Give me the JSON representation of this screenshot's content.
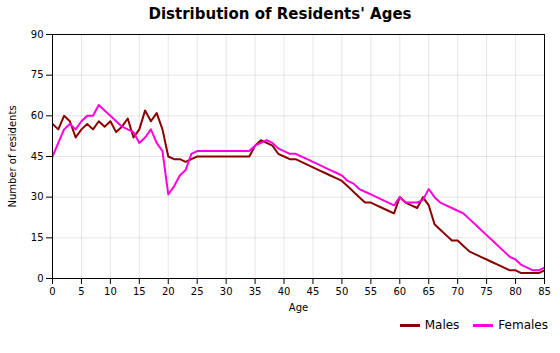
{
  "chart_data": {
    "type": "line",
    "title": "Distribution of Residents' Ages",
    "xlabel": "Age",
    "ylabel": "Number of residents",
    "x": [
      0,
      1,
      2,
      3,
      4,
      5,
      6,
      7,
      8,
      9,
      10,
      11,
      12,
      13,
      14,
      15,
      16,
      17,
      18,
      19,
      20,
      21,
      22,
      23,
      24,
      25,
      26,
      27,
      28,
      29,
      30,
      31,
      32,
      33,
      34,
      35,
      36,
      37,
      38,
      39,
      40,
      41,
      42,
      43,
      44,
      45,
      46,
      47,
      48,
      49,
      50,
      51,
      52,
      53,
      54,
      55,
      56,
      57,
      58,
      59,
      60,
      61,
      62,
      63,
      64,
      65,
      66,
      67,
      68,
      69,
      70,
      71,
      72,
      73,
      74,
      75,
      76,
      77,
      78,
      79,
      80,
      81,
      82,
      83,
      84,
      85
    ],
    "series": [
      {
        "name": "Males",
        "color": "#8b0000",
        "values": [
          57,
          55,
          60,
          58,
          52,
          55,
          57,
          55,
          58,
          56,
          58,
          54,
          56,
          59,
          52,
          55,
          62,
          58,
          61,
          55,
          45,
          44,
          44,
          43,
          44,
          45,
          45,
          45,
          45,
          45,
          45,
          45,
          45,
          45,
          45,
          49,
          51,
          50,
          49,
          46,
          45,
          44,
          44,
          43,
          42,
          41,
          40,
          39,
          38,
          37,
          36,
          34,
          32,
          30,
          28,
          28,
          27,
          26,
          25,
          24,
          30,
          28,
          27,
          26,
          30,
          27,
          20,
          18,
          16,
          14,
          14,
          12,
          10,
          9,
          8,
          7,
          6,
          5,
          4,
          3,
          3,
          2,
          2,
          2,
          2,
          3
        ]
      },
      {
        "name": "Females",
        "color": "#ff00dd",
        "values": [
          45,
          50,
          55,
          57,
          55,
          58,
          60,
          60,
          64,
          62,
          60,
          58,
          56,
          55,
          54,
          50,
          52,
          55,
          50,
          47,
          31,
          34,
          38,
          40,
          46,
          47,
          47,
          47,
          47,
          47,
          47,
          47,
          47,
          47,
          47,
          49,
          50,
          51,
          50,
          48,
          47,
          46,
          46,
          45,
          44,
          43,
          42,
          41,
          40,
          39,
          38,
          36,
          35,
          33,
          32,
          31,
          30,
          29,
          28,
          27,
          30,
          28,
          28,
          28,
          29,
          33,
          30,
          28,
          27,
          26,
          25,
          24,
          22,
          20,
          18,
          16,
          14,
          12,
          10,
          8,
          7,
          5,
          4,
          3,
          3,
          4
        ]
      }
    ],
    "xlim": [
      0,
      85
    ],
    "ylim": [
      0,
      90
    ],
    "xticks": [
      0,
      5,
      10,
      15,
      20,
      25,
      30,
      35,
      40,
      45,
      50,
      55,
      60,
      65,
      70,
      75,
      80,
      85
    ],
    "yticks": [
      0,
      15,
      30,
      45,
      60,
      75,
      90
    ],
    "grid": true,
    "legend": "lower right"
  }
}
